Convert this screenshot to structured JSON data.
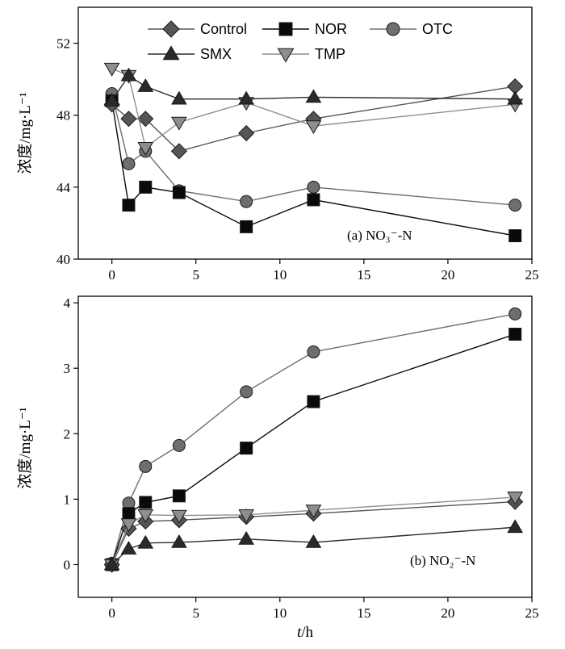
{
  "colors": {
    "Control": "#555555",
    "NOR": "#0a0a0a",
    "OTC": "#6e6e6e",
    "SMX": "#2a2a2a",
    "TMP": "#8e8e8e"
  },
  "chart_data": [
    {
      "type": "line",
      "annotation": "(a) NO₃⁻-N",
      "ylabel": "浓度/mg·L⁻¹",
      "xlabel": "",
      "xlim": [
        -2,
        25
      ],
      "ylim": [
        40,
        54
      ],
      "xticks": [
        0,
        5,
        10,
        15,
        20,
        25
      ],
      "yticks": [
        40,
        44,
        48,
        52
      ],
      "legend": "top",
      "legend_entries": [
        "Control",
        "NOR",
        "OTC",
        "SMX",
        "TMP"
      ],
      "series": [
        {
          "name": "Control",
          "marker": "diamond",
          "x": [
            0,
            1,
            2,
            4,
            8,
            12,
            24
          ],
          "values": [
            48.6,
            47.8,
            47.8,
            46.0,
            47.0,
            47.8,
            49.6
          ]
        },
        {
          "name": "NOR",
          "marker": "square",
          "x": [
            0,
            1,
            2,
            4,
            8,
            12,
            24
          ],
          "values": [
            48.8,
            43.0,
            44.0,
            43.7,
            41.8,
            43.3,
            41.3
          ]
        },
        {
          "name": "OTC",
          "marker": "circle",
          "x": [
            0,
            1,
            2,
            4,
            8,
            12,
            24
          ],
          "values": [
            49.2,
            45.3,
            46.0,
            43.8,
            43.2,
            44.0,
            43.0
          ]
        },
        {
          "name": "SMX",
          "marker": "triangle-up",
          "x": [
            0,
            1,
            2,
            4,
            8,
            12,
            24
          ],
          "values": [
            48.8,
            50.2,
            49.6,
            48.9,
            48.9,
            49.0,
            48.9
          ]
        },
        {
          "name": "TMP",
          "marker": "triangle-down",
          "x": [
            0,
            1,
            2,
            4,
            8,
            12,
            24
          ],
          "values": [
            50.6,
            50.2,
            46.2,
            47.6,
            48.7,
            47.4,
            48.6
          ]
        }
      ]
    },
    {
      "type": "line",
      "annotation": "(b) NO₂⁻-N",
      "ylabel": "浓度/mg·L⁻¹",
      "xlabel": "t/h",
      "xlim": [
        -2,
        25
      ],
      "ylim": [
        -0.5,
        4.1
      ],
      "xticks": [
        0,
        5,
        10,
        15,
        20,
        25
      ],
      "yticks": [
        0,
        1,
        2,
        3,
        4
      ],
      "series": [
        {
          "name": "Control",
          "marker": "diamond",
          "x": [
            0,
            1,
            2,
            4,
            8,
            12,
            24
          ],
          "values": [
            0.0,
            0.55,
            0.66,
            0.68,
            0.73,
            0.78,
            0.96
          ]
        },
        {
          "name": "NOR",
          "marker": "square",
          "x": [
            0,
            1,
            2,
            4,
            8,
            12,
            24
          ],
          "values": [
            0.0,
            0.78,
            0.95,
            1.05,
            1.78,
            2.49,
            3.52
          ]
        },
        {
          "name": "OTC",
          "marker": "circle",
          "x": [
            0,
            1,
            2,
            4,
            8,
            12,
            24
          ],
          "values": [
            0.02,
            0.94,
            1.5,
            1.82,
            2.64,
            3.25,
            3.83
          ]
        },
        {
          "name": "SMX",
          "marker": "triangle-up",
          "x": [
            0,
            1,
            2,
            4,
            8,
            12,
            24
          ],
          "values": [
            0.0,
            0.24,
            0.33,
            0.34,
            0.39,
            0.34,
            0.57
          ]
        },
        {
          "name": "TMP",
          "marker": "triangle-down",
          "x": [
            0,
            1,
            2,
            4,
            8,
            12,
            24
          ],
          "values": [
            0.0,
            0.62,
            0.76,
            0.75,
            0.76,
            0.83,
            1.03
          ]
        }
      ]
    }
  ]
}
